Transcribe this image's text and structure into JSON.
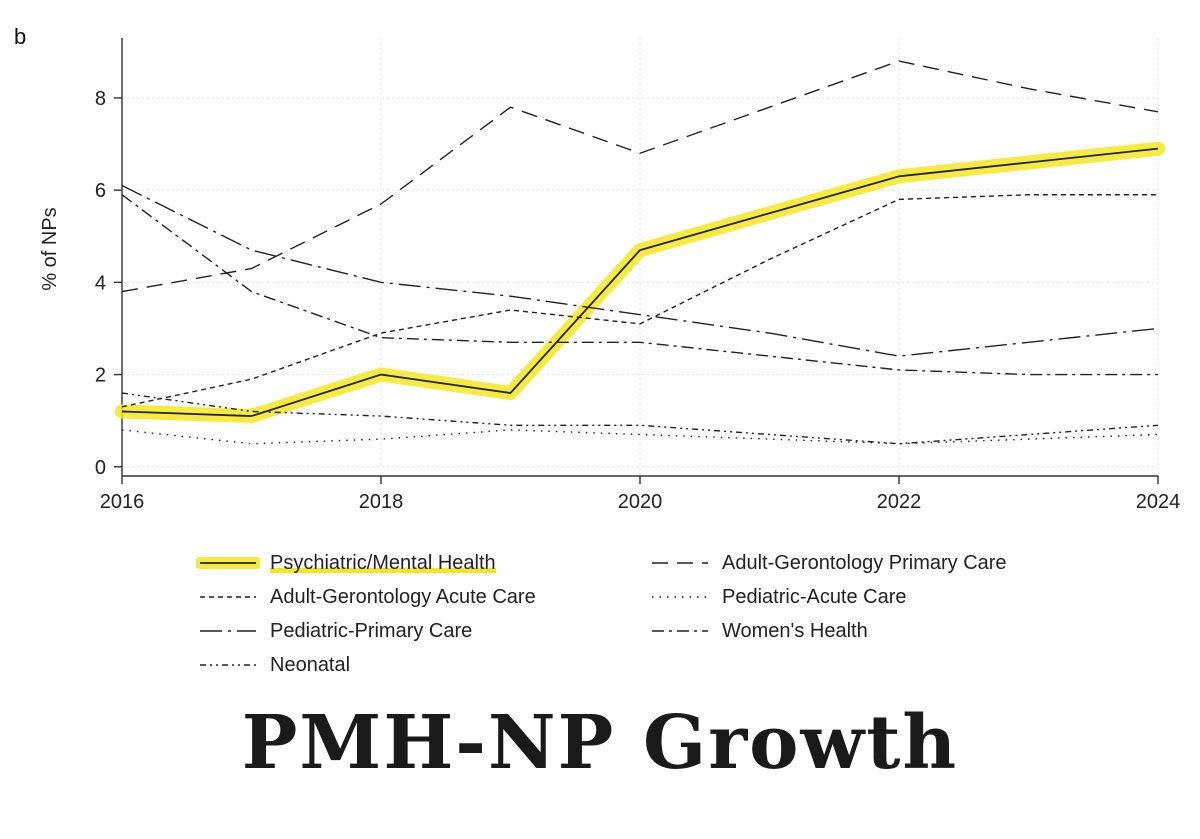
{
  "panel_letter": "b",
  "caption": "PMH-NP Growth",
  "colors": {
    "line": "#222222",
    "highlight": "#f5e71c",
    "axis": "#333333",
    "grid": "#e4e4e4"
  },
  "chart_data": {
    "type": "line",
    "title": "",
    "xlabel": "",
    "ylabel": "% of NPs",
    "x": [
      2016,
      2017,
      2018,
      2019,
      2020,
      2021,
      2022,
      2023,
      2024
    ],
    "xticks": [
      2016,
      2018,
      2020,
      2022,
      2024
    ],
    "xlim": [
      2016,
      2024
    ],
    "yticks": [
      0,
      2,
      4,
      6,
      8
    ],
    "ylim": [
      -0.2,
      9.3
    ],
    "grid": true,
    "legend_position": "bottom",
    "highlighted_series": "Psychiatric/Mental Health",
    "series": [
      {
        "name": "Psychiatric/Mental Health",
        "dash": "solid",
        "highlight": true,
        "values": [
          1.2,
          1.1,
          2.0,
          1.6,
          4.7,
          5.5,
          6.3,
          6.6,
          6.9
        ]
      },
      {
        "name": "Adult-Gerontology Primary Care",
        "dash": "longdash",
        "values": [
          3.8,
          4.3,
          5.7,
          7.8,
          6.8,
          7.8,
          8.8,
          8.2,
          7.7
        ]
      },
      {
        "name": "Adult-Gerontology Acute Care",
        "dash": "shortdash",
        "values": [
          1.3,
          1.9,
          2.9,
          3.4,
          3.1,
          4.5,
          5.8,
          5.9,
          5.9
        ]
      },
      {
        "name": "Pediatric-Acute Care",
        "dash": "dot",
        "values": [
          0.8,
          0.5,
          0.6,
          0.8,
          0.7,
          0.6,
          0.5,
          0.6,
          0.7
        ]
      },
      {
        "name": "Pediatric-Primary Care",
        "dash": "longdashdot",
        "values": [
          6.1,
          4.7,
          4.0,
          3.7,
          3.3,
          2.9,
          2.4,
          2.7,
          3.0
        ]
      },
      {
        "name": "Women's Health",
        "dash": "dashdot",
        "values": [
          5.9,
          3.8,
          2.8,
          2.7,
          2.7,
          2.4,
          2.1,
          2.0,
          2.0
        ]
      },
      {
        "name": "Neonatal",
        "dash": "dashdotdot",
        "values": [
          1.6,
          1.2,
          1.1,
          0.9,
          0.9,
          0.7,
          0.5,
          0.7,
          0.9
        ]
      }
    ]
  }
}
